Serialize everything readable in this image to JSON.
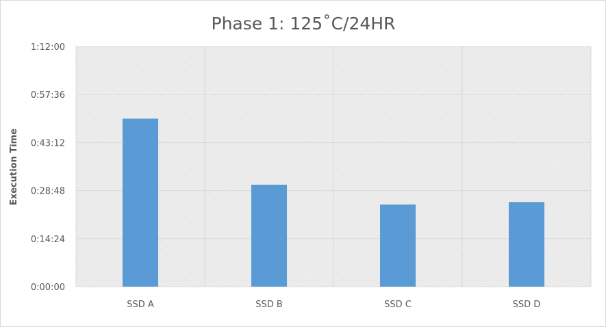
{
  "chart_data": {
    "type": "bar",
    "title": "Phase 1: 125˚C/24HR",
    "xlabel": "",
    "ylabel": "Execution Time",
    "categories": [
      "SSD A",
      "SSD B",
      "SSD C",
      "SSD D"
    ],
    "values_seconds": [
      3022,
      1834,
      1478,
      1523
    ],
    "values_display": [
      "0:50:22",
      "0:30:34",
      "0:24:38",
      "0:25:23"
    ],
    "ylim_seconds": [
      0,
      4320
    ],
    "yticks_seconds": [
      0,
      864,
      1728,
      2592,
      3456,
      4320
    ],
    "ytick_labels": [
      "0:00:00",
      "0:14:24",
      "0:28:48",
      "0:43:12",
      "0:57:36",
      "1:12:00"
    ],
    "grid": true,
    "legend": "none",
    "bar_color": "#5b9bd5",
    "plot_background": "hatched light gray"
  }
}
